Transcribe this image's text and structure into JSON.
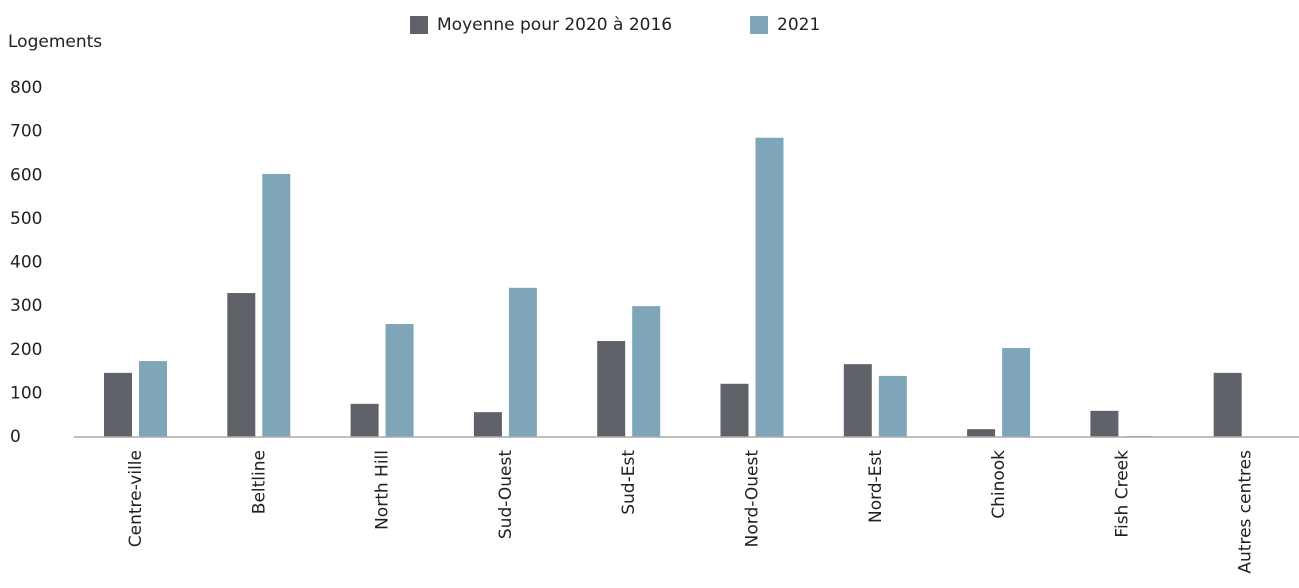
{
  "chart_data": {
    "type": "bar",
    "ylabel": "Logements",
    "categories": [
      "Centre-ville",
      "Beltline",
      "North Hill",
      "Sud-Ouest",
      "Sud-Est",
      "Nord-Ouest",
      "Nord-Est",
      "Chinook",
      "Fish Creek",
      "Autres centres"
    ],
    "series": [
      {
        "name": "Moyenne pour 2020 à 2016",
        "color": "#5f6369",
        "values": [
          147,
          330,
          76,
          57,
          220,
          122,
          167,
          18,
          60,
          147
        ]
      },
      {
        "name": "2021",
        "color": "#7fa6b8",
        "values": [
          174,
          603,
          259,
          342,
          300,
          686,
          140,
          204,
          2,
          0
        ]
      }
    ],
    "ylim": [
      0,
      800
    ],
    "yticks": [
      0,
      100,
      200,
      300,
      400,
      500,
      600,
      700,
      800
    ],
    "grid": false,
    "legend": "top"
  }
}
